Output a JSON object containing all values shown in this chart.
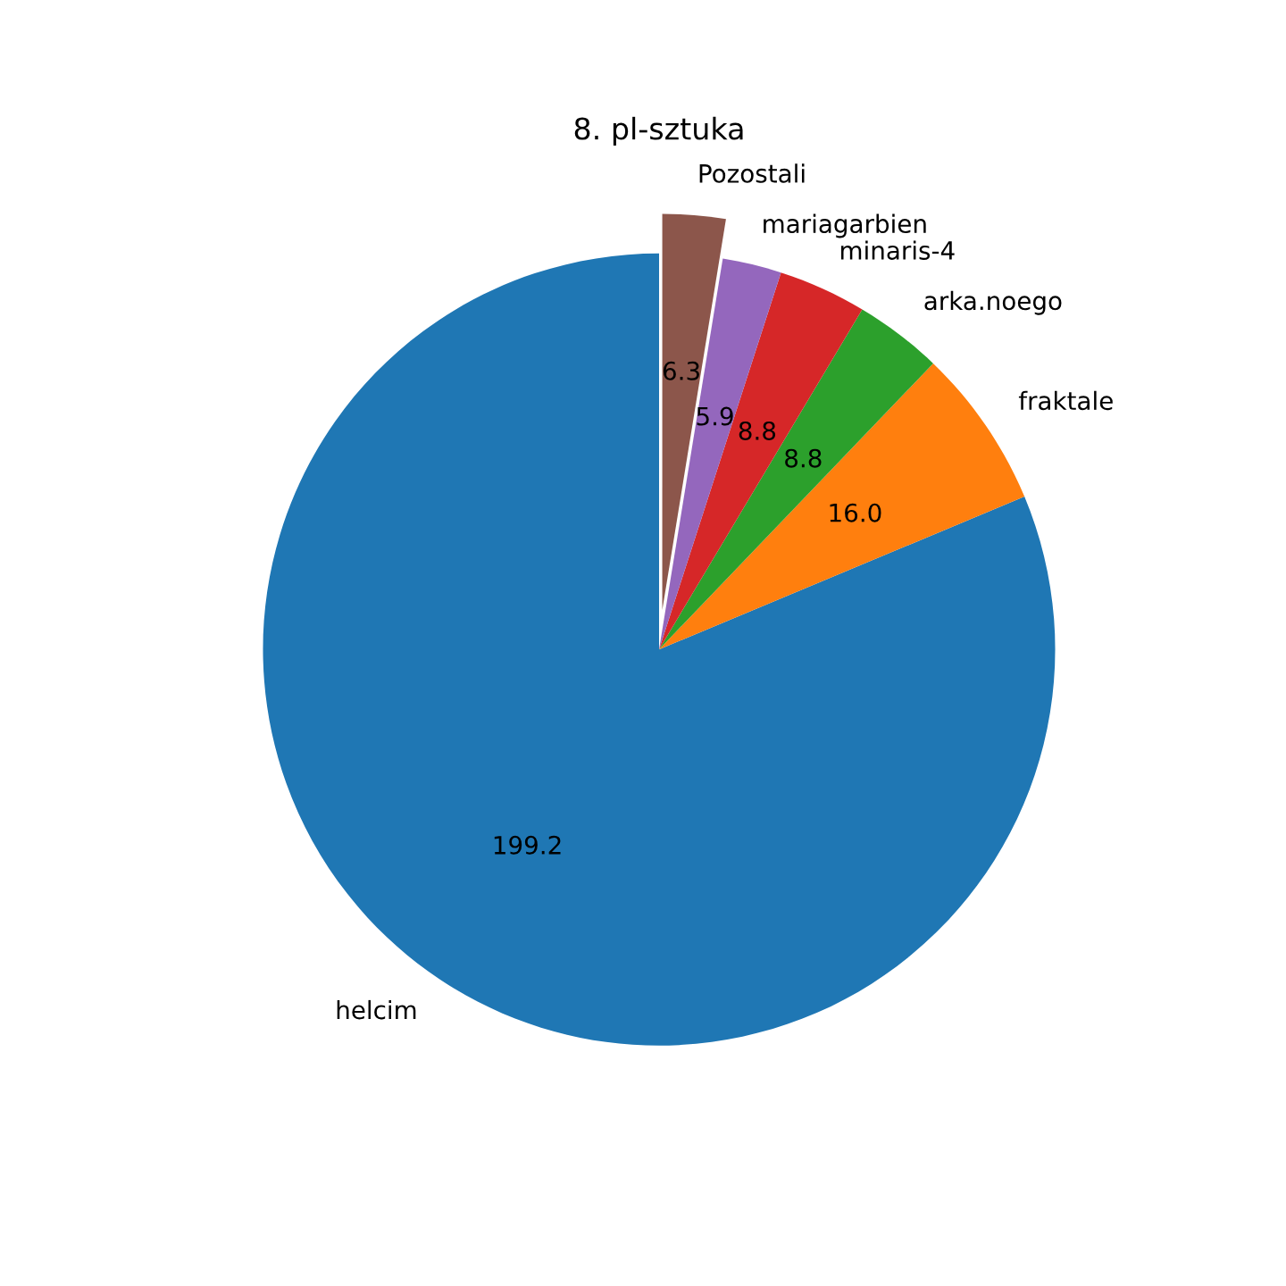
{
  "chart_data": {
    "type": "pie",
    "title": "8. pl-sztuka",
    "categories": [
      "helcim",
      "fraktale",
      "arka.noego",
      "minaris-4",
      "mariagarbien",
      "Pozostali"
    ],
    "values": [
      199.2,
      16.0,
      8.8,
      8.8,
      5.9,
      6.3
    ],
    "colors": [
      "#1f77b4",
      "#ff7f0e",
      "#2ca02c",
      "#d62728",
      "#9467bd",
      "#8c564b"
    ],
    "value_labels": [
      "199.2",
      "16.0",
      "8.8",
      "8.8",
      "5.9",
      "6.3"
    ]
  }
}
